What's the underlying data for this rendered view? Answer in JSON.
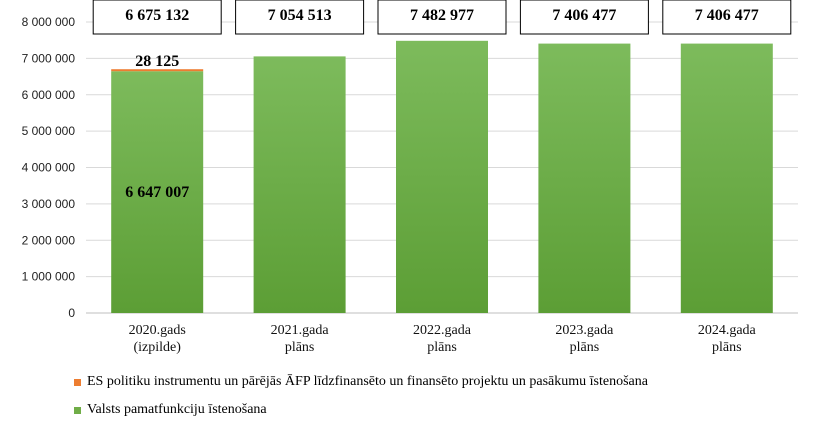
{
  "chart_data": {
    "type": "bar",
    "stacked": true,
    "categories": [
      [
        "2020.gads",
        "(izpilde)"
      ],
      [
        "2021.gada",
        "plāns"
      ],
      [
        "2022.gada",
        "plāns"
      ],
      [
        "2023.gada",
        "plāns"
      ],
      [
        "2024.gada",
        "plāns"
      ]
    ],
    "series": [
      {
        "name": "Valsts pamatfunkciju īstenošana",
        "color": "#70ad47",
        "values": [
          6647007,
          7054513,
          7482977,
          7406477,
          7406477
        ]
      },
      {
        "name": "ES politiku instrumentu un pārējās ĀFP līdzfinansēto un finansēto projektu un pasākumu īstenošana",
        "color": "#ed7d31",
        "values": [
          28125,
          0,
          0,
          0,
          0
        ]
      }
    ],
    "totals": [
      "6 675 132",
      "7 054 513",
      "7 482 977",
      "7 406 477",
      "7 406 477"
    ],
    "segment_labels": [
      {
        "category": 0,
        "series": 0,
        "text": "6 647 007"
      },
      {
        "category": 0,
        "series": 1,
        "text": "28 125"
      }
    ],
    "ylim": [
      0,
      8000000
    ],
    "yticks": [
      "0",
      "1 000 000",
      "2 000 000",
      "3 000 000",
      "4 000 000",
      "5 000 000",
      "6 000 000",
      "7 000 000",
      "8 000 000"
    ],
    "grid": true,
    "legend_position": "bottom",
    "title": "",
    "xlabel": "",
    "ylabel": ""
  }
}
